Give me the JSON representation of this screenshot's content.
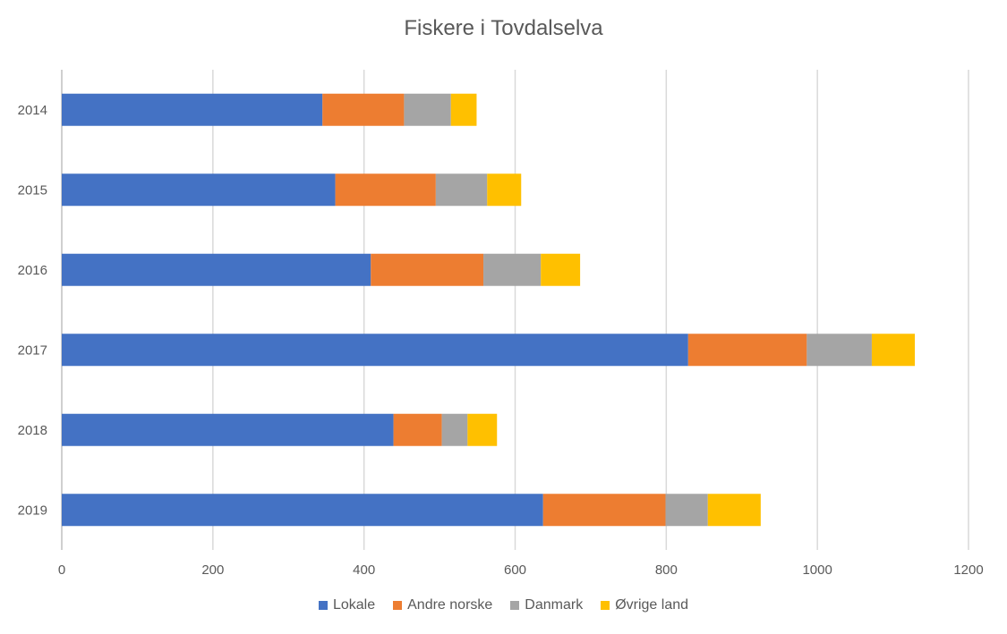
{
  "chart_data": {
    "type": "bar",
    "orientation": "horizontal",
    "stacked": true,
    "title": "Fiskere i Tovdalselva",
    "categories": [
      "2014",
      "2015",
      "2016",
      "2017",
      "2018",
      "2019"
    ],
    "series": [
      {
        "name": "Lokale",
        "color": "#4472C4",
        "values": [
          345,
          362,
          409,
          829,
          439,
          637
        ]
      },
      {
        "name": "Andre norske",
        "color": "#ED7D31",
        "values": [
          108,
          133,
          149,
          157,
          64,
          162
        ]
      },
      {
        "name": "Danmark",
        "color": "#A5A5A5",
        "values": [
          62,
          68,
          76,
          86,
          34,
          56
        ]
      },
      {
        "name": "Øvrige land",
        "color": "#FFC000",
        "values": [
          34,
          45,
          52,
          57,
          39,
          70
        ]
      }
    ],
    "xlim": [
      0,
      1200
    ],
    "xticks": [
      "0",
      "200",
      "400",
      "600",
      "800",
      "1000",
      "1200"
    ],
    "grid": true,
    "legend_position": "bottom"
  }
}
